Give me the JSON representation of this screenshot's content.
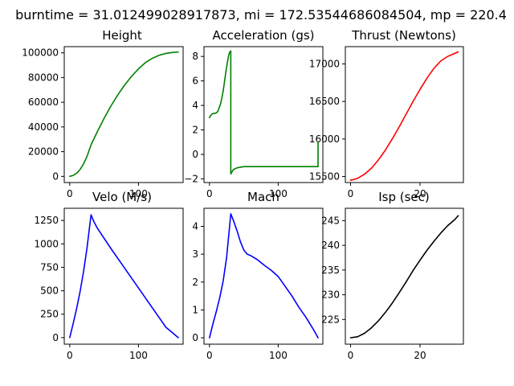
{
  "figure": {
    "suptitle": "burntime = 31.012499028917873, mi = 172.53544686084504, mp = 220.4"
  },
  "chart_data": [
    {
      "type": "line",
      "title": "Height",
      "color": "#008000",
      "xlim": [
        -8,
        165
      ],
      "ylim": [
        -5000,
        105000
      ],
      "xticks": [
        0,
        100
      ],
      "xtick_labels": [
        "0",
        "100"
      ],
      "yticks": [
        0,
        20000,
        40000,
        60000,
        80000,
        100000
      ],
      "ytick_labels": [
        "0",
        "20000",
        "40000",
        "60000",
        "80000",
        "100000"
      ],
      "series": [
        {
          "x": [
            0,
            5,
            10,
            15,
            20,
            25,
            31,
            40,
            50,
            60,
            70,
            80,
            90,
            100,
            110,
            120,
            130,
            140,
            150,
            158
          ],
          "y": [
            0,
            800,
            2500,
            5500,
            10000,
            16000,
            25500,
            36000,
            47000,
            57000,
            66000,
            74000,
            81000,
            87000,
            92000,
            95500,
            98000,
            99500,
            100300,
            100600
          ]
        }
      ]
    },
    {
      "type": "line",
      "title": "Acceleration (gs)",
      "color": "#008000",
      "xlim": [
        -8,
        165
      ],
      "ylim": [
        -2.3,
        8.8
      ],
      "xticks": [
        0,
        100
      ],
      "xtick_labels": [
        "0",
        "100"
      ],
      "yticks": [
        -2,
        0,
        2,
        4,
        6,
        8
      ],
      "ytick_labels": [
        "−2",
        "0",
        "2",
        "4",
        "6",
        "8"
      ],
      "series": [
        {
          "x": [
            0,
            2,
            4,
            6,
            8,
            10,
            12,
            14,
            16,
            18,
            20,
            22,
            24,
            26,
            28,
            29,
            30,
            31,
            31.01,
            32,
            34,
            36,
            40,
            45,
            50,
            60,
            80,
            100,
            120,
            140,
            158,
            158,
            158
          ],
          "y": [
            3.0,
            3.2,
            3.3,
            3.35,
            3.35,
            3.4,
            3.5,
            3.8,
            4.1,
            4.6,
            5.2,
            6.0,
            6.8,
            7.5,
            8.1,
            8.3,
            8.4,
            8.45,
            -1.6,
            -1.5,
            -1.3,
            -1.2,
            -1.1,
            -1.05,
            -1.0,
            -1.0,
            -1.0,
            -1.0,
            -1.0,
            -1.0,
            -1.0,
            0.95,
            0.95
          ]
        }
      ]
    },
    {
      "type": "line",
      "title": "Thrust (Newtons)",
      "color": "#ff0000",
      "xlim": [
        -1.5,
        32.5
      ],
      "ylim": [
        15420,
        17230
      ],
      "xticks": [
        0,
        20
      ],
      "xtick_labels": [
        "0",
        "20"
      ],
      "yticks": [
        15500,
        16000,
        16500,
        17000
      ],
      "ytick_labels": [
        "15500",
        "16000",
        "16500",
        "17000"
      ],
      "series": [
        {
          "x": [
            0,
            2,
            4,
            6,
            8,
            10,
            12,
            14,
            16,
            18,
            20,
            22,
            24,
            26,
            28,
            30,
            31
          ],
          "y": [
            15450,
            15475,
            15530,
            15610,
            15720,
            15850,
            16000,
            16160,
            16330,
            16500,
            16660,
            16810,
            16940,
            17040,
            17100,
            17140,
            17160
          ]
        }
      ]
    },
    {
      "type": "line",
      "title": "Velo (M/s)",
      "color": "#0000ff",
      "xlim": [
        -8,
        165
      ],
      "ylim": [
        -70,
        1380
      ],
      "xticks": [
        0,
        100
      ],
      "xtick_labels": [
        "0",
        "100"
      ],
      "yticks": [
        0,
        250,
        500,
        750,
        1000,
        1250
      ],
      "ytick_labels": [
        "0",
        "250",
        "500",
        "750",
        "1000",
        "1250"
      ],
      "series": [
        {
          "x": [
            0,
            5,
            10,
            15,
            20,
            25,
            31,
            35,
            40,
            60,
            80,
            100,
            120,
            140,
            158
          ],
          "y": [
            0,
            150,
            310,
            490,
            700,
            950,
            1310,
            1240,
            1170,
            950,
            740,
            530,
            320,
            110,
            0
          ]
        }
      ]
    },
    {
      "type": "line",
      "title": "Mach",
      "color": "#0000ff",
      "xlim": [
        -8,
        165
      ],
      "ylim": [
        -0.23,
        4.65
      ],
      "xticks": [
        0,
        100
      ],
      "xtick_labels": [
        "0",
        "100"
      ],
      "yticks": [
        0,
        1,
        2,
        3,
        4
      ],
      "ytick_labels": [
        "0",
        "1",
        "2",
        "3",
        "4"
      ],
      "series": [
        {
          "x": [
            0,
            5,
            10,
            15,
            20,
            25,
            31,
            35,
            40,
            45,
            50,
            55,
            60,
            70,
            80,
            90,
            100,
            110,
            120,
            130,
            140,
            150,
            158
          ],
          "y": [
            0,
            0.5,
            0.95,
            1.45,
            2.05,
            2.9,
            4.45,
            4.2,
            3.85,
            3.45,
            3.15,
            3.0,
            2.95,
            2.8,
            2.6,
            2.42,
            2.2,
            1.85,
            1.5,
            1.1,
            0.75,
            0.35,
            0
          ]
        }
      ]
    },
    {
      "type": "line",
      "title": "Isp (sec)",
      "color": "#000000",
      "xlim": [
        -1.5,
        32.5
      ],
      "ylim": [
        220,
        247.5
      ],
      "xticks": [
        0,
        20
      ],
      "xtick_labels": [
        "0",
        "20"
      ],
      "yticks": [
        225,
        230,
        235,
        240,
        245
      ],
      "ytick_labels": [
        "225",
        "230",
        "235",
        "240",
        "245"
      ],
      "series": [
        {
          "x": [
            0,
            2,
            4,
            6,
            8,
            10,
            12,
            14,
            16,
            18,
            20,
            22,
            24,
            26,
            28,
            30,
            31
          ],
          "y": [
            221.3,
            221.5,
            222.2,
            223.3,
            224.7,
            226.4,
            228.3,
            230.4,
            232.6,
            234.9,
            237.0,
            239.0,
            240.8,
            242.5,
            244.0,
            245.2,
            246.0
          ]
        }
      ]
    }
  ]
}
